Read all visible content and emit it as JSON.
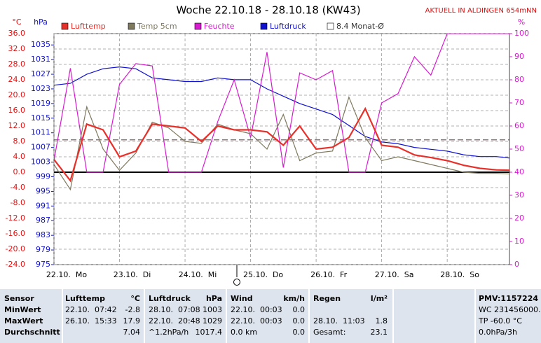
{
  "chart_data": {
    "type": "line",
    "title": "Woche 22.10.18 - 28.10.18 (KW43)",
    "subtitle": "AKTUELL IN ALDINGEN 654mNN",
    "y_unit": "°C",
    "y2_unit": "hPa",
    "y3_unit": "%",
    "x": [
      0,
      0.25,
      0.5,
      0.75,
      1,
      1.25,
      1.5,
      1.75,
      2,
      2.25,
      2.5,
      2.75,
      3,
      3.25,
      3.5,
      3.75,
      4,
      4.25,
      4.5,
      4.75,
      5,
      5.25,
      5.5,
      5.75,
      6,
      6.25,
      6.5,
      6.75,
      7
    ],
    "xlim": [
      0,
      6.95
    ],
    "xticks": [
      {
        "value": 0,
        "label": "22.10.  Mo"
      },
      {
        "value": 1,
        "label": "23.10.  Di"
      },
      {
        "value": 2,
        "label": "24.10.  Mi"
      },
      {
        "value": 3,
        "label": "25.10.  Do"
      },
      {
        "value": 4,
        "label": "26.10.  Fr"
      },
      {
        "value": 5,
        "label": "27.10.  Sa"
      },
      {
        "value": 6,
        "label": "28.10.  So"
      }
    ],
    "ylim": [
      -24,
      36
    ],
    "yticks": [
      {
        "value": 36,
        "label": "36.0"
      },
      {
        "value": 32,
        "label": "32.0"
      },
      {
        "value": 28,
        "label": "28.0"
      },
      {
        "value": 24,
        "label": "24.0"
      },
      {
        "value": 20,
        "label": "20.0"
      },
      {
        "value": 16,
        "label": "16.0"
      },
      {
        "value": 12,
        "label": "12.0"
      },
      {
        "value": 8,
        "label": "8.0"
      },
      {
        "value": 4,
        "label": "4.0"
      },
      {
        "value": 0,
        "label": "0.0"
      },
      {
        "value": -4,
        "label": "-4.0"
      },
      {
        "value": -8,
        "label": "-8.0"
      },
      {
        "value": -12,
        "label": "-12.0"
      },
      {
        "value": -16,
        "label": "-16.0"
      },
      {
        "value": -20,
        "label": "-20.0"
      },
      {
        "value": -24,
        "label": "-24.0"
      }
    ],
    "y2lim": [
      975,
      1038.1
    ],
    "y2ticks": [
      1035,
      1031,
      1027,
      1023,
      1019,
      1015,
      1011,
      1007,
      1003,
      999,
      995,
      991,
      987,
      983,
      979,
      975
    ],
    "y3lim": [
      0,
      100
    ],
    "y3ticks": [
      0,
      10,
      20,
      30,
      40,
      50,
      60,
      70,
      80,
      90,
      100
    ],
    "grid": true,
    "series": [
      {
        "name": "Lufttemp",
        "color": "#e8302a",
        "values": [
          3.3,
          -2.2,
          12.5,
          11.0,
          4.0,
          5.5,
          12.5,
          12.0,
          11.5,
          8.0,
          12.0,
          11.0,
          11.0,
          10.5,
          7.0,
          12.0,
          6.0,
          6.5,
          9.0,
          16.5,
          7.0,
          6.5,
          4.5,
          3.8,
          3.0,
          1.8,
          1.0,
          0.6,
          0.5
        ]
      },
      {
        "name": "Temp 5cm",
        "color": "#7f7a5e",
        "values": [
          2.0,
          -4.5,
          17.0,
          6.0,
          0.5,
          5.0,
          13.0,
          11.5,
          8.0,
          7.5,
          12.5,
          11.0,
          10.0,
          6.0,
          15.0,
          3.0,
          5.0,
          5.5,
          19.5,
          9.0,
          3.0,
          4.0,
          3.0,
          2.0,
          1.0,
          0.0,
          -0.3,
          -0.3,
          -0.5
        ]
      },
      {
        "name": "Feuchte",
        "color": "#d81ad0",
        "axis": "y3",
        "values": [
          45,
          85,
          40,
          40,
          78,
          87,
          86,
          40,
          40,
          40,
          62,
          80,
          55,
          92,
          42,
          83,
          80,
          84,
          40,
          40,
          70,
          74,
          90,
          82,
          100,
          100,
          100,
          100,
          100
        ]
      },
      {
        "name": "Luftdruck",
        "color": "#1010d0",
        "axis": "y2",
        "values": [
          1024,
          1024.5,
          1027,
          1028.5,
          1029,
          1028.5,
          1026,
          1025.5,
          1025,
          1025,
          1026,
          1025.5,
          1025.5,
          1023,
          1021,
          1019,
          1017.5,
          1016,
          1013,
          1010,
          1008.5,
          1008,
          1007,
          1006.5,
          1006,
          1005,
          1004.5,
          1004.5,
          1004
        ]
      }
    ],
    "monthly_avg": {
      "label": "8.4 Monat-Ø",
      "value": 8.4,
      "color": "#6a4a4a"
    }
  },
  "table": {
    "rows": [
      [
        "Sensor",
        "Lufttemp",
        "°C",
        "Luftdruck",
        "hPa",
        "Wind",
        "km/h",
        "Regen",
        "l/m²",
        "PMV:1157224"
      ],
      [
        "MinWert",
        "22.10.  07:42",
        "-2.8",
        "28.10.  07:08",
        "1003",
        "22.10.  00:03",
        "0.0",
        null,
        null,
        "WC 231456000.0"
      ],
      [
        "MaxWert",
        "26.10.  15:33",
        "17.9",
        "22.10.  20:48",
        "1029",
        "22.10.  00:03",
        "0.0",
        "28.10.  11:03",
        "1.8",
        "TP -60.0 °C"
      ],
      [
        "Durchschnitt",
        null,
        "7.04",
        "^1.2hPa/h",
        "1017.4",
        "0.0 km",
        "0.0",
        "Gesamt:",
        "23.1",
        "0.0hPa/3h"
      ]
    ]
  }
}
